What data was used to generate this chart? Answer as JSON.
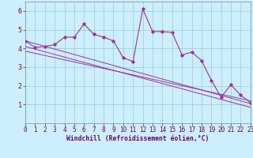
{
  "xlabel": "Windchill (Refroidissement éolien,°C)",
  "x": [
    0,
    1,
    2,
    3,
    4,
    5,
    6,
    7,
    8,
    9,
    10,
    11,
    12,
    13,
    14,
    15,
    16,
    17,
    18,
    19,
    20,
    21,
    22,
    23
  ],
  "y_main": [
    4.4,
    4.05,
    4.1,
    4.2,
    4.6,
    4.6,
    5.3,
    4.75,
    4.6,
    4.4,
    3.5,
    3.3,
    6.1,
    4.9,
    4.9,
    4.85,
    3.65,
    3.8,
    3.35,
    2.3,
    1.4,
    2.05,
    1.5,
    1.1
  ],
  "line_color": "#993399",
  "bg_color": "#cceeff",
  "grid_color": "#99cccc",
  "ylim": [
    0,
    6.5
  ],
  "xlim": [
    0,
    23
  ],
  "yticks": [
    1,
    2,
    3,
    4,
    5,
    6
  ],
  "xticks": [
    0,
    1,
    2,
    3,
    4,
    5,
    6,
    7,
    8,
    9,
    10,
    11,
    12,
    13,
    14,
    15,
    16,
    17,
    18,
    19,
    20,
    21,
    22,
    23
  ],
  "regression_lines": [
    {
      "x0": 0,
      "y0": 4.4,
      "x1": 23,
      "y1": 1.05
    },
    {
      "x0": 0,
      "y0": 4.1,
      "x1": 23,
      "y1": 0.85
    },
    {
      "x0": 0,
      "y0": 3.85,
      "x1": 23,
      "y1": 1.2
    }
  ],
  "xlabel_fontsize": 5.8,
  "tick_fontsize": 5.5,
  "xlabel_color": "#660066"
}
